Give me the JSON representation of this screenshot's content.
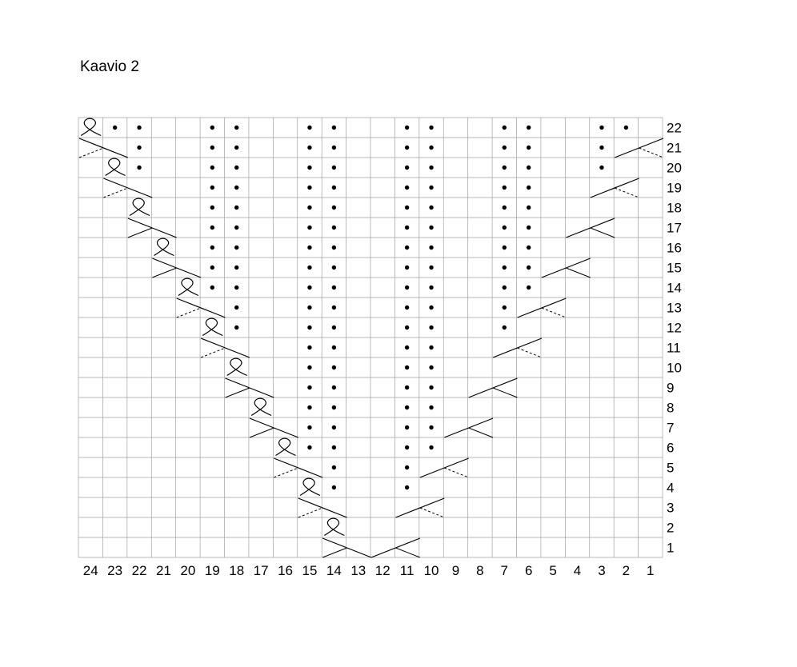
{
  "title": "Kaavio 2",
  "chart_data": {
    "type": "knitting-chart",
    "columns": 24,
    "rows": 22,
    "column_labels": [
      "24",
      "23",
      "22",
      "21",
      "20",
      "19",
      "18",
      "17",
      "16",
      "15",
      "14",
      "13",
      "12",
      "11",
      "10",
      "9",
      "8",
      "7",
      "6",
      "5",
      "4",
      "3",
      "2",
      "1"
    ],
    "row_labels": [
      "22",
      "21",
      "20",
      "19",
      "18",
      "17",
      "16",
      "15",
      "14",
      "13",
      "12",
      "11",
      "10",
      "9",
      "8",
      "7",
      "6",
      "5",
      "4",
      "3",
      "2",
      "1"
    ],
    "purl_dots": {
      "22": [
        23,
        22,
        19,
        18,
        15,
        14,
        11,
        10,
        7,
        6,
        3,
        2
      ],
      "21": [
        22,
        19,
        18,
        15,
        14,
        11,
        10,
        7,
        6,
        3
      ],
      "20": [
        22,
        19,
        18,
        15,
        14,
        11,
        10,
        7,
        6,
        3
      ],
      "19": [
        19,
        18,
        15,
        14,
        11,
        10,
        7,
        6
      ],
      "18": [
        19,
        18,
        15,
        14,
        11,
        10,
        7,
        6
      ],
      "17": [
        19,
        18,
        15,
        14,
        11,
        10,
        7,
        6
      ],
      "16": [
        19,
        18,
        15,
        14,
        11,
        10,
        7,
        6
      ],
      "15": [
        19,
        18,
        15,
        14,
        11,
        10,
        7,
        6
      ],
      "14": [
        19,
        18,
        15,
        14,
        11,
        10,
        7,
        6
      ],
      "13": [
        18,
        15,
        14,
        11,
        10,
        7
      ],
      "12": [
        18,
        15,
        14,
        11,
        10,
        7
      ],
      "11": [
        15,
        14,
        11,
        10
      ],
      "10": [
        15,
        14,
        11,
        10
      ],
      "9": [
        15,
        14,
        11,
        10
      ],
      "8": [
        15,
        14,
        11,
        10
      ],
      "7": [
        15,
        14,
        11,
        10
      ],
      "6": [
        15,
        14,
        11,
        10
      ],
      "5": [
        14,
        11
      ],
      "4": [
        14,
        11
      ]
    },
    "twisted_stitches": [
      {
        "row": 22,
        "col": 24
      },
      {
        "row": 20,
        "col": 23
      },
      {
        "row": 18,
        "col": 22
      },
      {
        "row": 16,
        "col": 21
      },
      {
        "row": 14,
        "col": 20
      },
      {
        "row": 12,
        "col": 19
      },
      {
        "row": 10,
        "col": 18
      },
      {
        "row": 8,
        "col": 17
      },
      {
        "row": 6,
        "col": 16
      },
      {
        "row": 4,
        "col": 15
      },
      {
        "row": 2,
        "col": 14
      }
    ],
    "cables": [
      {
        "row": 21,
        "cols": [
          24,
          23
        ],
        "direction": "left",
        "under": "dashed"
      },
      {
        "row": 19,
        "cols": [
          23,
          22
        ],
        "direction": "left",
        "under": "dashed"
      },
      {
        "row": 17,
        "cols": [
          22,
          21
        ],
        "direction": "left",
        "under": "solid"
      },
      {
        "row": 15,
        "cols": [
          21,
          20
        ],
        "direction": "left",
        "under": "solid"
      },
      {
        "row": 13,
        "cols": [
          20,
          19
        ],
        "direction": "left",
        "under": "dashed"
      },
      {
        "row": 11,
        "cols": [
          19,
          18
        ],
        "direction": "left",
        "under": "dashed"
      },
      {
        "row": 9,
        "cols": [
          18,
          17
        ],
        "direction": "left",
        "under": "solid"
      },
      {
        "row": 7,
        "cols": [
          17,
          16
        ],
        "direction": "left",
        "under": "solid"
      },
      {
        "row": 5,
        "cols": [
          16,
          15
        ],
        "direction": "left",
        "under": "dashed"
      },
      {
        "row": 3,
        "cols": [
          15,
          14
        ],
        "direction": "left",
        "under": "dashed"
      },
      {
        "row": 1,
        "cols": [
          14,
          13
        ],
        "direction": "left",
        "under": "solid"
      },
      {
        "row": 1,
        "cols": [
          12,
          11
        ],
        "direction": "right",
        "under": "solid"
      },
      {
        "row": 3,
        "cols": [
          11,
          10
        ],
        "direction": "right",
        "under": "dashed"
      },
      {
        "row": 5,
        "cols": [
          10,
          9
        ],
        "direction": "right",
        "under": "dashed"
      },
      {
        "row": 7,
        "cols": [
          9,
          8
        ],
        "direction": "right",
        "under": "solid"
      },
      {
        "row": 9,
        "cols": [
          8,
          7
        ],
        "direction": "right",
        "under": "solid"
      },
      {
        "row": 11,
        "cols": [
          7,
          6
        ],
        "direction": "right",
        "under": "dashed"
      },
      {
        "row": 13,
        "cols": [
          6,
          5
        ],
        "direction": "right",
        "under": "dashed"
      },
      {
        "row": 15,
        "cols": [
          5,
          4
        ],
        "direction": "right",
        "under": "solid"
      },
      {
        "row": 17,
        "cols": [
          4,
          3
        ],
        "direction": "right",
        "under": "solid"
      },
      {
        "row": 19,
        "cols": [
          3,
          2
        ],
        "direction": "right",
        "under": "dashed"
      },
      {
        "row": 21,
        "cols": [
          2,
          1
        ],
        "direction": "right",
        "under": "dashed"
      }
    ],
    "grid_color": "#a0a0a0",
    "symbol_color": "#000000"
  }
}
